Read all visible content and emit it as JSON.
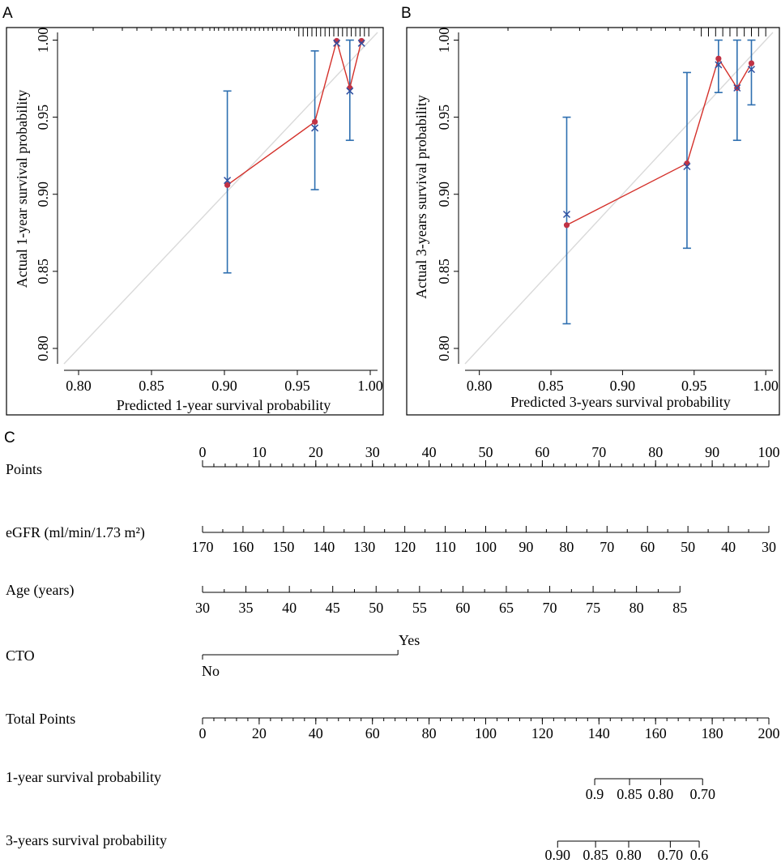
{
  "colors": {
    "axis": "#000000",
    "ideal_line": "#d9d9d9",
    "error_bar": "#2e6fb0",
    "observed": "#d4302a",
    "observed_point": "#c03245",
    "corrected_marker": "#2f4fa0"
  },
  "chart_data": [
    {
      "type": "scatter",
      "panel_label": "A",
      "xlabel": "Predicted 1-year survival probability",
      "ylabel": "Actual 1-year survival probability",
      "xlim": [
        0.79,
        1.005
      ],
      "ylim": [
        0.79,
        1.005
      ],
      "xticks": [
        "0.80",
        "0.85",
        "0.90",
        "0.95",
        "1.00"
      ],
      "yticks": [
        "0.80",
        "0.85",
        "0.90",
        "0.95",
        "1.00"
      ],
      "ideal_line": [
        [
          0.79,
          0.79
        ],
        [
          1.005,
          1.005
        ]
      ],
      "groups": [
        {
          "predicted": 0.902,
          "observed": 0.906,
          "corrected": 0.909,
          "ci_low": 0.849,
          "ci_high": 0.967
        },
        {
          "predicted": 0.962,
          "observed": 0.947,
          "corrected": 0.943,
          "ci_low": 0.903,
          "ci_high": 0.993
        },
        {
          "predicted": 0.977,
          "observed": 0.9995,
          "corrected": 0.998,
          "ci_low": 0.9995,
          "ci_high": 0.9995
        },
        {
          "predicted": 0.986,
          "observed": 0.969,
          "corrected": 0.967,
          "ci_low": 0.935,
          "ci_high": 1.0
        },
        {
          "predicted": 0.994,
          "observed": 0.9995,
          "corrected": 0.998,
          "ci_low": 0.9995,
          "ci_high": 0.9995
        }
      ],
      "rug": [
        0.81,
        0.83,
        0.84,
        0.85,
        0.86,
        0.865,
        0.87,
        0.875,
        0.88,
        0.885,
        0.89,
        0.893,
        0.896,
        0.9,
        0.903,
        0.906,
        0.909,
        0.912,
        0.915,
        0.918,
        0.921,
        0.924,
        0.927,
        0.93,
        0.933,
        0.936,
        0.939,
        0.942,
        0.945,
        0.948,
        0.951,
        0.954,
        0.957,
        0.96,
        0.963,
        0.966,
        0.969,
        0.972,
        0.975,
        0.978,
        0.981,
        0.984,
        0.987,
        0.99,
        0.993,
        0.996,
        0.999
      ]
    },
    {
      "type": "scatter",
      "panel_label": "B",
      "xlabel": "Predicted 3-years survival probability",
      "ylabel": "Actual 3-years survival probability",
      "xlim": [
        0.79,
        1.005
      ],
      "ylim": [
        0.79,
        1.005
      ],
      "xticks": [
        "0.80",
        "0.85",
        "0.90",
        "0.95",
        "1.00"
      ],
      "yticks": [
        "0.80",
        "0.85",
        "0.90",
        "0.95",
        "1.00"
      ],
      "ideal_line": [
        [
          0.79,
          0.79
        ],
        [
          1.005,
          1.005
        ]
      ],
      "groups": [
        {
          "predicted": 0.861,
          "observed": 0.88,
          "corrected": 0.887,
          "ci_low": 0.816,
          "ci_high": 0.95
        },
        {
          "predicted": 0.945,
          "observed": 0.92,
          "corrected": 0.918,
          "ci_low": 0.865,
          "ci_high": 0.979
        },
        {
          "predicted": 0.967,
          "observed": 0.988,
          "corrected": 0.984,
          "ci_low": 0.966,
          "ci_high": 1.0
        },
        {
          "predicted": 0.98,
          "observed": 0.969,
          "corrected": 0.969,
          "ci_low": 0.935,
          "ci_high": 1.0
        },
        {
          "predicted": 0.99,
          "observed": 0.985,
          "corrected": 0.981,
          "ci_low": 0.958,
          "ci_high": 1.0
        }
      ],
      "rug": [
        0.82,
        0.85,
        0.87,
        0.89,
        0.9,
        0.91,
        0.92,
        0.93,
        0.94,
        0.95,
        0.955,
        0.96,
        0.965,
        0.97,
        0.975,
        0.98,
        0.985,
        0.99,
        0.995,
        1.0
      ]
    },
    {
      "type": "table",
      "panel_label": "C",
      "kind": "nomogram",
      "scales": [
        {
          "label": "Points",
          "ticks_top": true,
          "major": [
            {
              "v": 0,
              "t": "0"
            },
            {
              "v": 10,
              "t": "10"
            },
            {
              "v": 20,
              "t": "20"
            },
            {
              "v": 30,
              "t": "30"
            },
            {
              "v": 40,
              "t": "40"
            },
            {
              "v": 50,
              "t": "50"
            },
            {
              "v": 60,
              "t": "60"
            },
            {
              "v": 70,
              "t": "70"
            },
            {
              "v": 80,
              "t": "80"
            },
            {
              "v": 90,
              "t": "90"
            },
            {
              "v": 100,
              "t": "100"
            }
          ],
          "minor_step": 2,
          "range": [
            0,
            100
          ]
        },
        {
          "label": "eGFR (ml/min/1.73 m²)",
          "ticks_top": true,
          "points_range": [
            0,
            100
          ],
          "major": [
            {
              "p": 0,
              "t": "170"
            },
            {
              "p": 7.143,
              "t": "160"
            },
            {
              "p": 14.286,
              "t": "150"
            },
            {
              "p": 21.429,
              "t": "140"
            },
            {
              "p": 28.571,
              "t": "130"
            },
            {
              "p": 35.714,
              "t": "120"
            },
            {
              "p": 42.857,
              "t": "110"
            },
            {
              "p": 50.0,
              "t": "100"
            },
            {
              "p": 57.143,
              "t": "90"
            },
            {
              "p": 64.286,
              "t": "80"
            },
            {
              "p": 71.429,
              "t": "70"
            },
            {
              "p": 78.571,
              "t": "60"
            },
            {
              "p": 85.714,
              "t": "50"
            },
            {
              "p": 92.857,
              "t": "40"
            },
            {
              "p": 100.0,
              "t": "30"
            }
          ]
        },
        {
          "label": "Age (years)",
          "ticks_top": true,
          "points_range": [
            0,
            84.3
          ],
          "major": [
            {
              "p": 0,
              "t": "30"
            },
            {
              "p": 7.66,
              "t": "35"
            },
            {
              "p": 15.33,
              "t": "40"
            },
            {
              "p": 22.99,
              "t": "45"
            },
            {
              "p": 30.65,
              "t": "50"
            },
            {
              "p": 38.32,
              "t": "55"
            },
            {
              "p": 45.98,
              "t": "60"
            },
            {
              "p": 53.64,
              "t": "65"
            },
            {
              "p": 61.31,
              "t": "70"
            },
            {
              "p": 68.97,
              "t": "75"
            },
            {
              "p": 76.63,
              "t": "80"
            },
            {
              "p": 84.3,
              "t": "85"
            }
          ]
        },
        {
          "label": "CTO",
          "kind": "categorical",
          "levels": [
            {
              "p": 0,
              "t": "No",
              "pos": "below"
            },
            {
              "p": 34.5,
              "t": "Yes",
              "pos": "above"
            }
          ]
        },
        {
          "label": "Total Points",
          "ticks_top": false,
          "major": [
            {
              "v": 0,
              "t": "0"
            },
            {
              "v": 20,
              "t": "20"
            },
            {
              "v": 40,
              "t": "40"
            },
            {
              "v": 60,
              "t": "60"
            },
            {
              "v": 80,
              "t": "80"
            },
            {
              "v": 100,
              "t": "100"
            },
            {
              "v": 120,
              "t": "120"
            },
            {
              "v": 140,
              "t": "140"
            },
            {
              "v": 160,
              "t": "160"
            },
            {
              "v": 180,
              "t": "180"
            },
            {
              "v": 200,
              "t": "200"
            }
          ],
          "minor_step": 4,
          "range": [
            0,
            200
          ]
        },
        {
          "label": "1-year survival probability",
          "ticks_top": false,
          "total_range": [
            0,
            200
          ],
          "major": [
            {
              "v": 138.5,
              "t": "0.9"
            },
            {
              "v": 150.8,
              "t": "0.85"
            },
            {
              "v": 161.8,
              "t": "0.80"
            },
            {
              "v": 176.6,
              "t": "0.70"
            }
          ]
        },
        {
          "label": "3-years survival probability",
          "ticks_top": false,
          "total_range": [
            0,
            200
          ],
          "major": [
            {
              "v": 125.4,
              "t": "0.90"
            },
            {
              "v": 138.8,
              "t": "0.85"
            },
            {
              "v": 150.5,
              "t": "0.80"
            },
            {
              "v": 165.2,
              "t": "0.70"
            },
            {
              "v": 175.4,
              "t": "0.6"
            }
          ]
        }
      ]
    }
  ]
}
